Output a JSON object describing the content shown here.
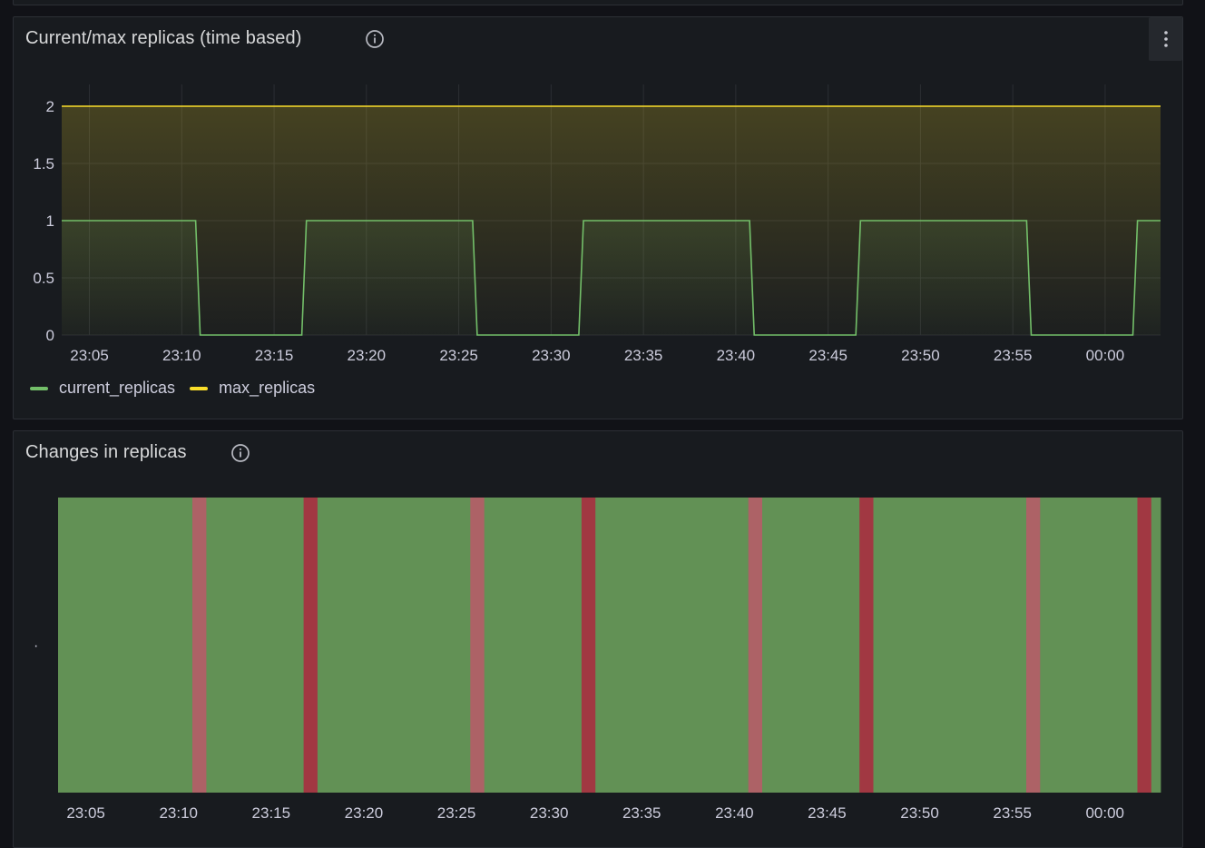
{
  "panels": [
    {
      "title": "Current/max replicas (time based)",
      "info_icon": "info-circle-icon",
      "menu_icon": "kebab-menu-icon",
      "legend": [
        {
          "label": "current_replicas",
          "color": "#73bf69"
        },
        {
          "label": "max_replicas",
          "color": "#fade2a"
        }
      ]
    },
    {
      "title": "Changes in replicas",
      "info_icon": "info-circle-icon",
      "row_label": "·"
    }
  ],
  "chart_data": [
    {
      "type": "line",
      "x_ticks": [
        "23:05",
        "23:10",
        "23:15",
        "23:20",
        "23:25",
        "23:30",
        "23:35",
        "23:40",
        "23:45",
        "23:50",
        "23:55",
        "00:00"
      ],
      "y_ticks": [
        "2",
        "1.5",
        "1",
        "0.5",
        "0"
      ],
      "ylim": [
        0,
        2
      ],
      "grid": true,
      "legend_position": "bottom-left",
      "series": [
        {
          "name": "current_replicas",
          "color": "#73bf69",
          "points": [
            [
              "23:03:30",
              1
            ],
            [
              "23:10:45",
              1
            ],
            [
              "23:11:00",
              0
            ],
            [
              "23:16:30",
              0
            ],
            [
              "23:16:45",
              1
            ],
            [
              "23:25:45",
              1
            ],
            [
              "23:26:00",
              0
            ],
            [
              "23:31:30",
              0
            ],
            [
              "23:31:45",
              1
            ],
            [
              "23:40:45",
              1
            ],
            [
              "23:41:00",
              0
            ],
            [
              "23:46:30",
              0
            ],
            [
              "23:46:45",
              1
            ],
            [
              "23:55:45",
              1
            ],
            [
              "23:56:00",
              0
            ],
            [
              "00:01:30",
              0
            ],
            [
              "00:01:45",
              1
            ],
            [
              "00:03:00",
              1
            ]
          ]
        },
        {
          "name": "max_replicas",
          "color": "#fade2a",
          "points": [
            [
              "23:03:30",
              2
            ],
            [
              "00:03:00",
              2
            ]
          ]
        }
      ]
    },
    {
      "type": "heatmap",
      "x_ticks": [
        "23:05",
        "23:10",
        "23:15",
        "23:20",
        "23:25",
        "23:30",
        "23:35",
        "23:40",
        "23:45",
        "23:50",
        "23:55",
        "00:00"
      ],
      "colors": {
        "steady": "#629155",
        "decrease": "#ad6266",
        "increase": "#a13842"
      },
      "segments": [
        {
          "start": "23:03:30",
          "end": "23:10:45",
          "state": "steady"
        },
        {
          "start": "23:10:45",
          "end": "23:11:30",
          "state": "decrease"
        },
        {
          "start": "23:11:30",
          "end": "23:16:45",
          "state": "steady"
        },
        {
          "start": "23:16:45",
          "end": "23:17:30",
          "state": "increase"
        },
        {
          "start": "23:17:30",
          "end": "23:25:45",
          "state": "steady"
        },
        {
          "start": "23:25:45",
          "end": "23:26:30",
          "state": "decrease"
        },
        {
          "start": "23:26:30",
          "end": "23:31:45",
          "state": "steady"
        },
        {
          "start": "23:31:45",
          "end": "23:32:30",
          "state": "increase"
        },
        {
          "start": "23:32:30",
          "end": "23:40:45",
          "state": "steady"
        },
        {
          "start": "23:40:45",
          "end": "23:41:30",
          "state": "decrease"
        },
        {
          "start": "23:41:30",
          "end": "23:46:45",
          "state": "steady"
        },
        {
          "start": "23:46:45",
          "end": "23:47:30",
          "state": "increase"
        },
        {
          "start": "23:47:30",
          "end": "23:55:45",
          "state": "steady"
        },
        {
          "start": "23:55:45",
          "end": "23:56:30",
          "state": "decrease"
        },
        {
          "start": "23:56:30",
          "end": "00:01:45",
          "state": "steady"
        },
        {
          "start": "00:01:45",
          "end": "00:02:30",
          "state": "increase"
        },
        {
          "start": "00:02:30",
          "end": "00:03:00",
          "state": "steady"
        }
      ]
    }
  ]
}
